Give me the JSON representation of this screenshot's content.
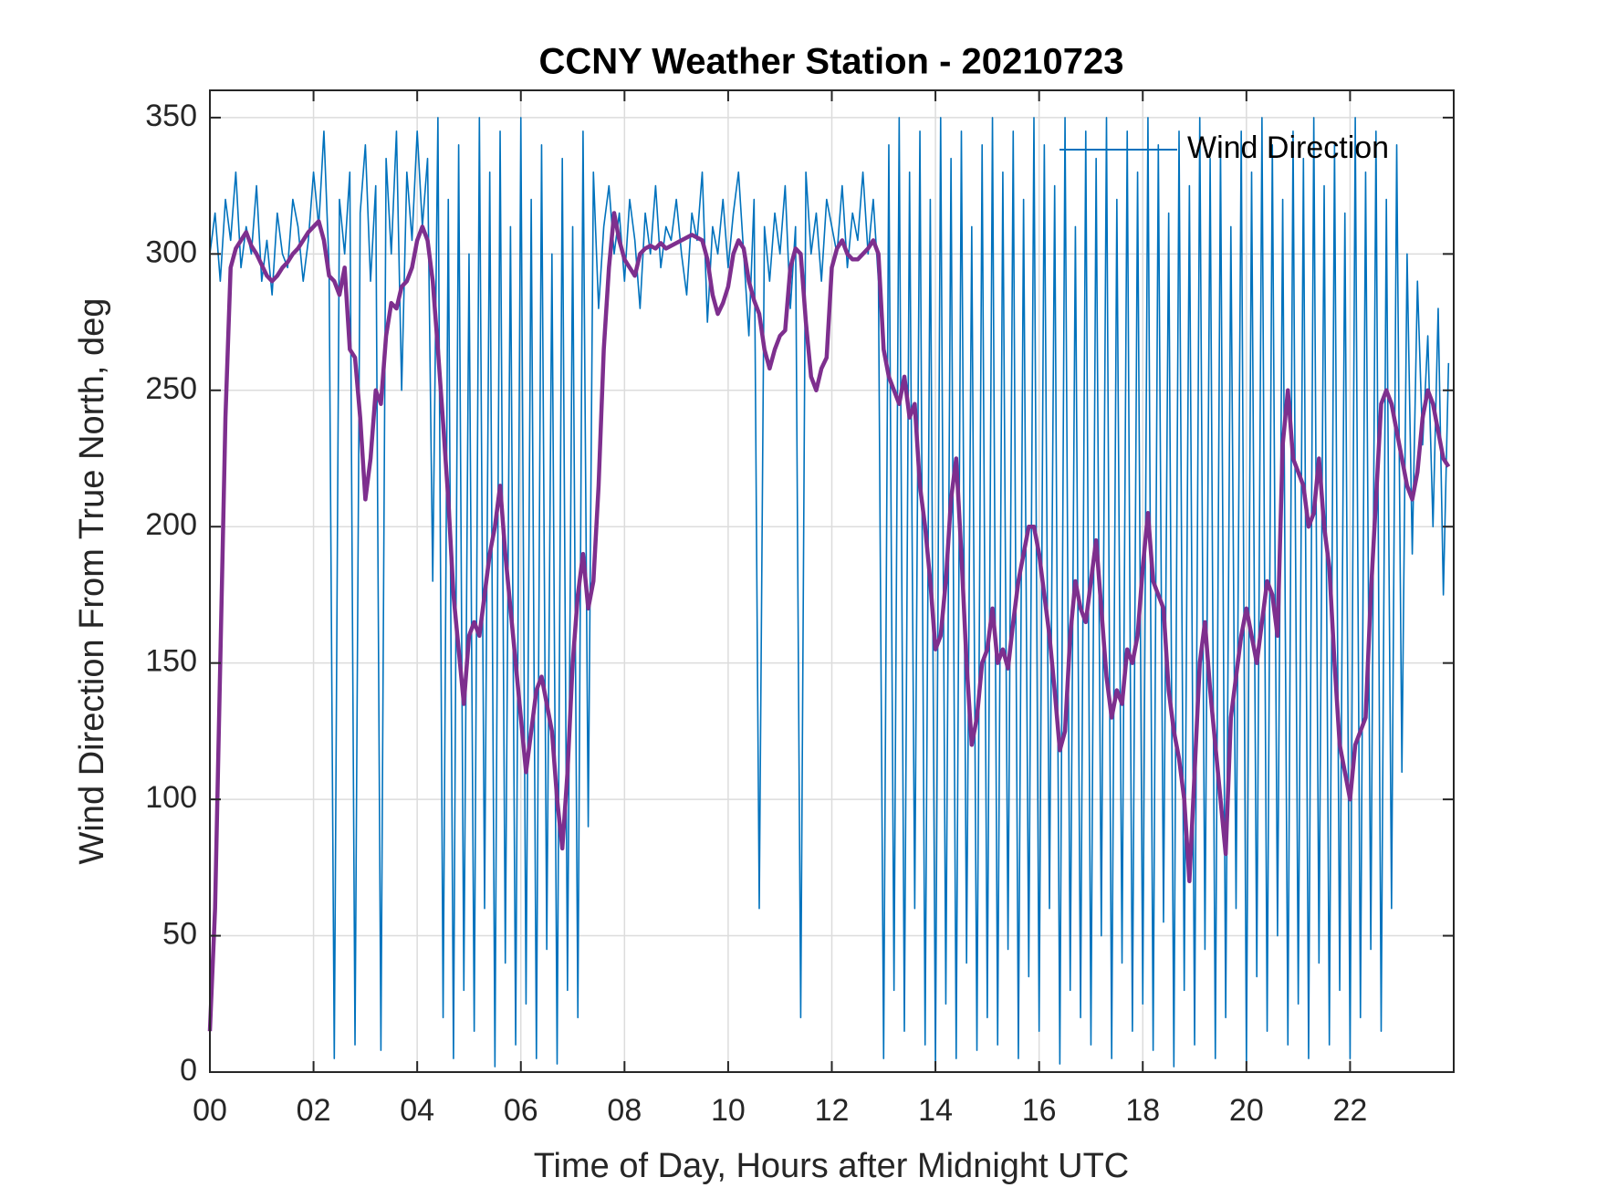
{
  "chart_data": {
    "type": "line",
    "title": "CCNY Weather Station - 20210723",
    "xlabel": "Time of Day, Hours after Midnight UTC",
    "ylabel": "Wind Direction From True North, deg",
    "xlim": [
      0,
      24
    ],
    "ylim": [
      0,
      360
    ],
    "xticks": [
      {
        "value": 0,
        "label": "00"
      },
      {
        "value": 2,
        "label": "02"
      },
      {
        "value": 4,
        "label": "04"
      },
      {
        "value": 6,
        "label": "06"
      },
      {
        "value": 8,
        "label": "08"
      },
      10,
      12,
      14,
      16,
      18,
      20,
      22
    ],
    "yticks": [
      0,
      50,
      100,
      150,
      200,
      250,
      300,
      350
    ],
    "grid": true,
    "legend": "northeast",
    "x": [
      0,
      0.1,
      0.2,
      0.3,
      0.4,
      0.5,
      0.6,
      0.7,
      0.8,
      0.9,
      1,
      1.1,
      1.2,
      1.3,
      1.4,
      1.5,
      1.6,
      1.7,
      1.8,
      1.9,
      2,
      2.1,
      2.2,
      2.3,
      2.4,
      2.5,
      2.6,
      2.7,
      2.8,
      2.9,
      3,
      3.1,
      3.2,
      3.3,
      3.4,
      3.5,
      3.6,
      3.7,
      3.8,
      3.9,
      4,
      4.1,
      4.2,
      4.3,
      4.4,
      4.5,
      4.6,
      4.7,
      4.8,
      4.9,
      5,
      5.1,
      5.2,
      5.3,
      5.4,
      5.5,
      5.6,
      5.7,
      5.8,
      5.9,
      6,
      6.1,
      6.2,
      6.3,
      6.4,
      6.5,
      6.6,
      6.7,
      6.8,
      6.9,
      7,
      7.1,
      7.2,
      7.3,
      7.4,
      7.5,
      7.6,
      7.7,
      7.8,
      7.9,
      8,
      8.1,
      8.2,
      8.3,
      8.4,
      8.5,
      8.6,
      8.7,
      8.8,
      8.9,
      9,
      9.1,
      9.2,
      9.3,
      9.4,
      9.5,
      9.6,
      9.7,
      9.8,
      9.9,
      10,
      10.1,
      10.2,
      10.3,
      10.4,
      10.5,
      10.6,
      10.7,
      10.8,
      10.9,
      11,
      11.1,
      11.2,
      11.3,
      11.4,
      11.5,
      11.6,
      11.7,
      11.8,
      11.9,
      12,
      12.1,
      12.2,
      12.3,
      12.4,
      12.5,
      12.6,
      12.7,
      12.8,
      12.9,
      13,
      13.1,
      13.2,
      13.3,
      13.4,
      13.5,
      13.6,
      13.7,
      13.8,
      13.9,
      14,
      14.1,
      14.2,
      14.3,
      14.4,
      14.5,
      14.6,
      14.7,
      14.8,
      14.9,
      15,
      15.1,
      15.2,
      15.3,
      15.4,
      15.5,
      15.6,
      15.7,
      15.8,
      15.9,
      16,
      16.1,
      16.2,
      16.3,
      16.4,
      16.5,
      16.6,
      16.7,
      16.8,
      16.9,
      17,
      17.1,
      17.2,
      17.3,
      17.4,
      17.5,
      17.6,
      17.7,
      17.8,
      17.9,
      18,
      18.1,
      18.2,
      18.3,
      18.4,
      18.5,
      18.6,
      18.7,
      18.8,
      18.9,
      19,
      19.1,
      19.2,
      19.3,
      19.4,
      19.5,
      19.6,
      19.7,
      19.8,
      19.9,
      20,
      20.1,
      20.2,
      20.3,
      20.4,
      20.5,
      20.6,
      20.7,
      20.8,
      20.9,
      21,
      21.1,
      21.2,
      21.3,
      21.4,
      21.5,
      21.6,
      21.7,
      21.8,
      21.9,
      22,
      22.1,
      22.2,
      22.3,
      22.4,
      22.5,
      22.6,
      22.7,
      22.8,
      22.9,
      23,
      23.1,
      23.2,
      23.3,
      23.4,
      23.5,
      23.6,
      23.7,
      23.8,
      23.9
    ],
    "series": [
      {
        "name": "Wind Direction",
        "color": "#0072BD",
        "values": [
          300,
          315,
          290,
          320,
          305,
          330,
          295,
          310,
          300,
          325,
          290,
          305,
          285,
          315,
          300,
          295,
          320,
          310,
          290,
          305,
          330,
          310,
          345,
          295,
          5,
          320,
          300,
          330,
          10,
          315,
          340,
          290,
          325,
          8,
          335,
          300,
          345,
          250,
          330,
          305,
          345,
          310,
          335,
          180,
          350,
          20,
          320,
          5,
          340,
          30,
          300,
          15,
          350,
          60,
          330,
          2,
          345,
          40,
          310,
          10,
          350,
          25,
          320,
          5,
          340,
          45,
          300,
          3,
          335,
          30,
          310,
          20,
          345,
          90,
          330,
          280,
          310,
          325,
          300,
          315,
          290,
          320,
          305,
          280,
          315,
          300,
          325,
          295,
          310,
          305,
          320,
          300,
          285,
          315,
          305,
          330,
          275,
          310,
          300,
          320,
          295,
          315,
          330,
          300,
          270,
          320,
          60,
          310,
          290,
          315,
          300,
          325,
          280,
          310,
          20,
          330,
          300,
          315,
          290,
          320,
          310,
          300,
          325,
          295,
          315,
          305,
          330,
          300,
          320,
          290,
          5,
          340,
          30,
          350,
          15,
          330,
          60,
          345,
          10,
          320,
          2,
          350,
          25,
          335,
          5,
          345,
          40,
          310,
          8,
          340,
          20,
          350,
          10,
          330,
          45,
          345,
          5,
          320,
          35,
          350,
          15,
          340,
          60,
          325,
          3,
          350,
          30,
          310,
          20,
          345,
          10,
          335,
          50,
          350,
          5,
          320,
          40,
          345,
          15,
          330,
          25,
          350,
          8,
          340,
          55,
          315,
          2,
          345,
          30,
          325,
          10,
          350,
          45,
          335,
          5,
          340,
          20,
          310,
          60,
          345,
          3,
          330,
          35,
          350,
          15,
          340,
          50,
          320,
          10,
          345,
          25,
          335,
          5,
          350,
          40,
          325,
          10,
          340,
          30,
          315,
          5,
          350,
          20,
          330,
          45,
          345,
          15,
          320,
          60,
          340,
          110,
          300,
          190,
          290,
          230,
          270,
          200,
          280,
          175,
          260
        ]
      },
      {
        "color": "#7E2F8E",
        "values": [
          15,
          60,
          150,
          240,
          295,
          302,
          305,
          308,
          303,
          300,
          296,
          292,
          290,
          292,
          295,
          297,
          300,
          302,
          305,
          308,
          310,
          312,
          305,
          292,
          290,
          285,
          295,
          265,
          262,
          240,
          210,
          225,
          250,
          245,
          270,
          282,
          280,
          288,
          290,
          295,
          305,
          310,
          305,
          290,
          265,
          238,
          210,
          175,
          155,
          135,
          160,
          165,
          160,
          175,
          190,
          200,
          215,
          190,
          170,
          150,
          130,
          110,
          125,
          140,
          145,
          135,
          125,
          100,
          82,
          110,
          150,
          175,
          190,
          170,
          180,
          215,
          265,
          295,
          315,
          305,
          298,
          295,
          292,
          300,
          302,
          303,
          302,
          304,
          302,
          303,
          304,
          305,
          306,
          307,
          306,
          305,
          298,
          285,
          278,
          282,
          288,
          300,
          305,
          302,
          290,
          283,
          278,
          265,
          258,
          265,
          270,
          272,
          295,
          302,
          300,
          275,
          255,
          250,
          258,
          262,
          295,
          302,
          305,
          300,
          298,
          298,
          300,
          302,
          305,
          300,
          265,
          255,
          250,
          245,
          255,
          240,
          245,
          215,
          200,
          180,
          155,
          160,
          180,
          210,
          225,
          190,
          150,
          120,
          130,
          150,
          155,
          170,
          150,
          155,
          148,
          165,
          180,
          190,
          200,
          200,
          190,
          175,
          160,
          140,
          118,
          125,
          160,
          180,
          170,
          165,
          180,
          195,
          170,
          145,
          130,
          140,
          135,
          155,
          150,
          160,
          185,
          205,
          180,
          175,
          170,
          140,
          125,
          115,
          100,
          70,
          110,
          150,
          165,
          140,
          120,
          100,
          80,
          130,
          145,
          160,
          170,
          160,
          150,
          165,
          180,
          175,
          160,
          230,
          250,
          225,
          220,
          215,
          200,
          205,
          225,
          200,
          185,
          150,
          120,
          110,
          100,
          120,
          125,
          130,
          175,
          210,
          245,
          250,
          245,
          235,
          225,
          215,
          210,
          220,
          240,
          250,
          245,
          235,
          225,
          222
        ]
      }
    ]
  }
}
